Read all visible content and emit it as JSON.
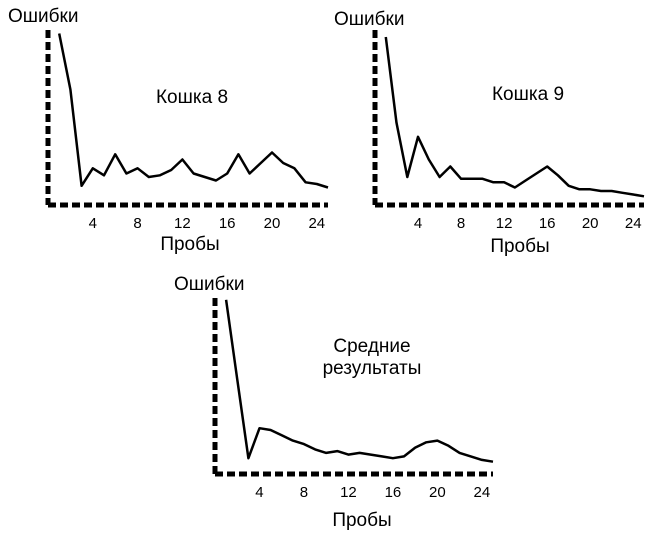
{
  "chart_data": [
    {
      "type": "line",
      "title": "Кошка 8",
      "xlabel": "Пробы",
      "ylabel": "Ошибки",
      "xticks": [
        "4",
        "8",
        "12",
        "16",
        "20",
        "24"
      ],
      "xlim": [
        0,
        25
      ],
      "ylim": [
        0,
        10
      ],
      "grid": false,
      "series": [
        {
          "x": [
            1,
            2,
            3,
            4,
            5,
            6,
            7,
            8,
            9,
            10,
            11,
            12,
            13,
            14,
            15,
            16,
            17,
            18,
            19,
            20,
            21,
            22,
            23,
            24,
            25
          ],
          "y": [
            9.8,
            6.6,
            1.1,
            2.1,
            1.7,
            2.9,
            1.8,
            2.1,
            1.6,
            1.7,
            2.0,
            2.6,
            1.8,
            1.6,
            1.4,
            1.8,
            2.9,
            1.8,
            2.4,
            3.0,
            2.4,
            2.1,
            1.3,
            1.2,
            1.0
          ]
        }
      ]
    },
    {
      "type": "line",
      "title": "Кошка 9",
      "xlabel": "Пробы",
      "ylabel": "Ошибки",
      "xticks": [
        "4",
        "8",
        "12",
        "16",
        "20",
        "24"
      ],
      "xlim": [
        0,
        25
      ],
      "ylim": [
        0,
        10
      ],
      "grid": false,
      "series": [
        {
          "x": [
            1,
            2,
            3,
            4,
            5,
            6,
            7,
            8,
            9,
            10,
            11,
            12,
            13,
            14,
            15,
            16,
            17,
            18,
            19,
            20,
            21,
            22,
            23,
            24,
            25
          ],
          "y": [
            9.6,
            4.7,
            1.6,
            3.9,
            2.6,
            1.6,
            2.2,
            1.5,
            1.5,
            1.5,
            1.3,
            1.3,
            1.0,
            1.4,
            1.8,
            2.2,
            1.7,
            1.1,
            0.9,
            0.9,
            0.8,
            0.8,
            0.7,
            0.6,
            0.5
          ]
        }
      ]
    },
    {
      "type": "line",
      "title": "Средние\nрезультаты",
      "xlabel": "Пробы",
      "ylabel": "Ошибки",
      "xticks": [
        "4",
        "8",
        "12",
        "16",
        "20",
        "24"
      ],
      "xlim": [
        0,
        25
      ],
      "ylim": [
        0,
        10
      ],
      "grid": false,
      "series": [
        {
          "x": [
            1,
            2,
            3,
            4,
            5,
            6,
            7,
            8,
            9,
            10,
            11,
            12,
            13,
            14,
            15,
            16,
            17,
            18,
            19,
            20,
            21,
            22,
            23,
            24,
            25
          ],
          "y": [
            9.9,
            5.4,
            0.9,
            2.6,
            2.5,
            2.2,
            1.9,
            1.7,
            1.4,
            1.2,
            1.3,
            1.1,
            1.2,
            1.1,
            1.0,
            0.9,
            1.0,
            1.5,
            1.8,
            1.9,
            1.6,
            1.2,
            1.0,
            0.8,
            0.7
          ]
        }
      ]
    }
  ]
}
